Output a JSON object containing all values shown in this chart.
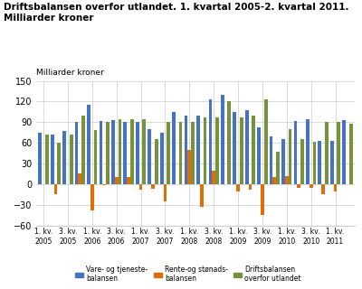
{
  "title_line1": "Driftsbalansen overfor utlandet. 1. kvartal 2005-2. kvartal 2011.",
  "title_line2": "Milliarder kroner",
  "ylabel": "Milliarder kroner",
  "ylim": [
    -60,
    150
  ],
  "yticks": [
    -60,
    -30,
    0,
    30,
    60,
    90,
    120,
    150
  ],
  "x_labels": [
    "1. kv.\n2005",
    "3. kv.\n2005",
    "1. kv.\n2006",
    "3. kv.\n2006",
    "1. kv.\n2007",
    "3. kv.\n2007",
    "1. kv.\n2008",
    "3. kv.\n2008",
    "1. kv.\n2009",
    "3. kv.\n2009",
    "1. kv.\n2010",
    "3. kv.\n2010",
    "1. kv.\n2011"
  ],
  "vare_tjeneste": [
    75,
    72,
    77,
    91,
    115,
    92,
    93,
    91,
    90,
    80,
    75,
    105,
    100,
    100,
    123,
    130,
    105,
    108,
    83,
    70,
    65,
    92,
    95,
    63,
    63,
    93
  ],
  "rente_stonads": [
    0,
    -14,
    0,
    16,
    -38,
    -2,
    10,
    10,
    -8,
    -7,
    -25,
    0,
    50,
    -33,
    20,
    0,
    -10,
    -8,
    -45,
    10,
    12,
    -5,
    -5,
    -15,
    -10,
    0
  ],
  "driftsbalansen": [
    72,
    60,
    72,
    100,
    78,
    91,
    94,
    94,
    95,
    65,
    91,
    90,
    90,
    97,
    97,
    120,
    97,
    100,
    123,
    47,
    80,
    65,
    62,
    90,
    90,
    88
  ],
  "color_blue": "#4472C4",
  "color_orange": "#E26B0A",
  "color_green": "#76933C",
  "legend_labels": [
    "Vare- og tjeneste-\nbalansen",
    "Rente-og stønads-\nbalansen",
    "Driftsbalansen\noverfor utlandet"
  ],
  "bar_width": 0.28
}
